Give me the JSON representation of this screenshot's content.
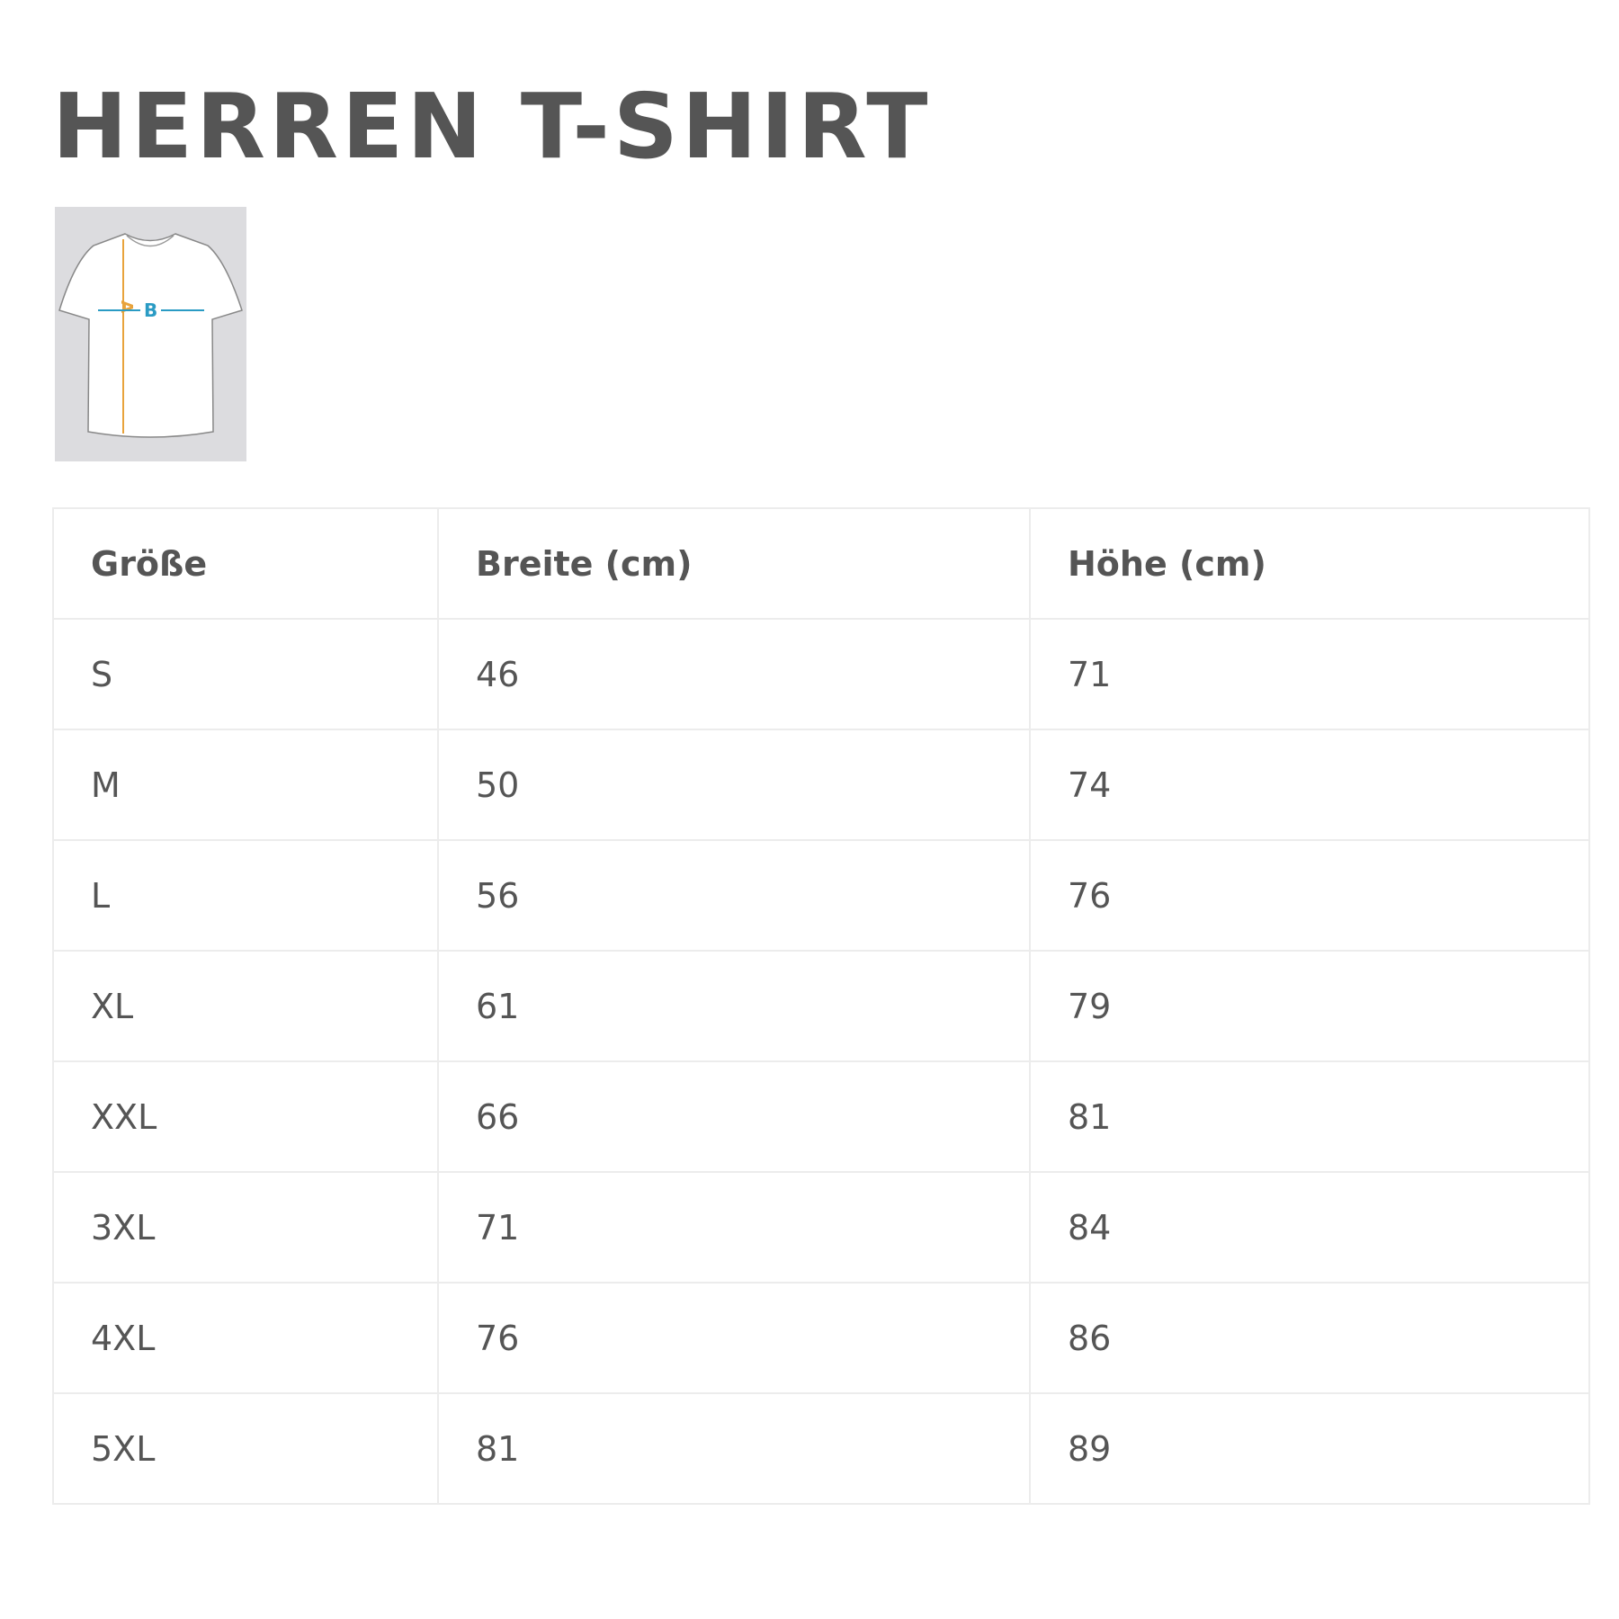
{
  "title": "HERREN T-SHIRT",
  "diagram": {
    "label_a": "A",
    "label_b": "B",
    "color_a": "#e8a33c",
    "color_b": "#2a9bc4"
  },
  "table": {
    "headers": [
      "Größe",
      "Breite (cm)",
      "Höhe (cm)"
    ],
    "rows": [
      [
        "S",
        "46",
        "71"
      ],
      [
        "M",
        "50",
        "74"
      ],
      [
        "L",
        "56",
        "76"
      ],
      [
        "XL",
        "61",
        "79"
      ],
      [
        "XXL",
        "66",
        "81"
      ],
      [
        "3XL",
        "71",
        "84"
      ],
      [
        "4XL",
        "76",
        "86"
      ],
      [
        "5XL",
        "81",
        "89"
      ]
    ]
  }
}
